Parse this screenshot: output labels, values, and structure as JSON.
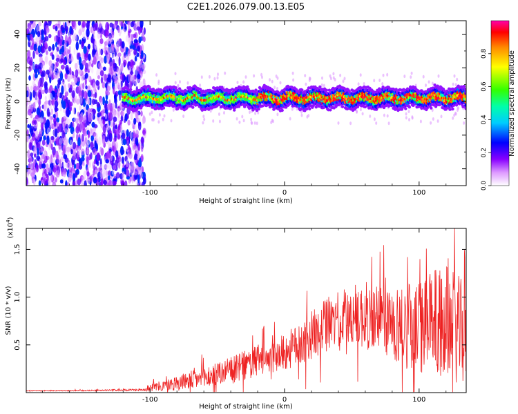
{
  "chart_data": [
    {
      "type": "heatmap",
      "title": "C2E1.2026.079.00.13.E05",
      "xlabel": "Height of straight line (km)",
      "ylabel": "Frequency (Hz)",
      "xlim": [
        -192,
        135
      ],
      "ylim": [
        -50,
        48
      ],
      "xticks": [
        -100,
        0,
        100
      ],
      "xtick_labels": [
        "-100",
        "0",
        "100"
      ],
      "yticks": [
        -40,
        -20,
        0,
        20,
        40
      ],
      "ytick_labels": [
        "-40",
        "-20",
        "0",
        "20",
        "40"
      ],
      "colorbar": {
        "label": "Normalized spectral amplitude",
        "range": [
          0.0,
          1.0
        ],
        "ticks": [
          0.0,
          0.2,
          0.4,
          0.6,
          0.8
        ],
        "tick_labels": [
          "0.0",
          "0.2",
          "0.4",
          "0.6",
          "0.8"
        ],
        "colormap": [
          "#ffffff",
          "#cc44ff",
          "#0000ff",
          "#00ffff",
          "#00ff00",
          "#ffff00",
          "#ff0000",
          "#ff00ff"
        ]
      },
      "signal_band": {
        "x_start": -120,
        "center_freq_hz": 2,
        "half_width_hz": 5
      },
      "noise_region": {
        "x_end": -104
      }
    },
    {
      "type": "line",
      "xlabel": "Height of straight line (km)",
      "ylabel": "SNR (10 * v/v)",
      "y_scale_label": "(x10",
      "y_scale_exp": "4",
      "xlim": [
        -192,
        135
      ],
      "ylim": [
        0,
        1.72
      ],
      "xticks": [
        -100,
        0,
        100
      ],
      "xtick_labels": [
        "-100",
        "0",
        "100"
      ],
      "yticks": [
        0.5,
        1.0,
        1.5
      ],
      "ytick_labels": [
        "0.5",
        "1.0",
        "1.5"
      ],
      "series": [
        {
          "name": "SNR",
          "color": "#ee2222",
          "x": [
            -192,
            -160,
            -130,
            -105,
            -100,
            -90,
            -80,
            -70,
            -60,
            -50,
            -40,
            -30,
            -20,
            -10,
            0,
            10,
            20,
            30,
            40,
            50,
            60,
            70,
            80,
            90,
            100,
            110,
            120,
            135
          ],
          "y_mean": [
            0.02,
            0.02,
            0.025,
            0.03,
            0.05,
            0.07,
            0.1,
            0.13,
            0.15,
            0.2,
            0.23,
            0.28,
            0.33,
            0.38,
            0.42,
            0.5,
            0.6,
            0.7,
            0.78,
            0.8,
            0.8,
            0.78,
            0.72,
            0.7,
            0.68,
            0.72,
            0.75,
            0.6
          ],
          "y_spread": [
            0.005,
            0.005,
            0.008,
            0.01,
            0.04,
            0.06,
            0.08,
            0.1,
            0.12,
            0.13,
            0.14,
            0.16,
            0.17,
            0.18,
            0.2,
            0.22,
            0.25,
            0.28,
            0.3,
            0.33,
            0.36,
            0.38,
            0.4,
            0.45,
            0.5,
            0.55,
            0.6,
            0.55
          ]
        }
      ]
    }
  ]
}
